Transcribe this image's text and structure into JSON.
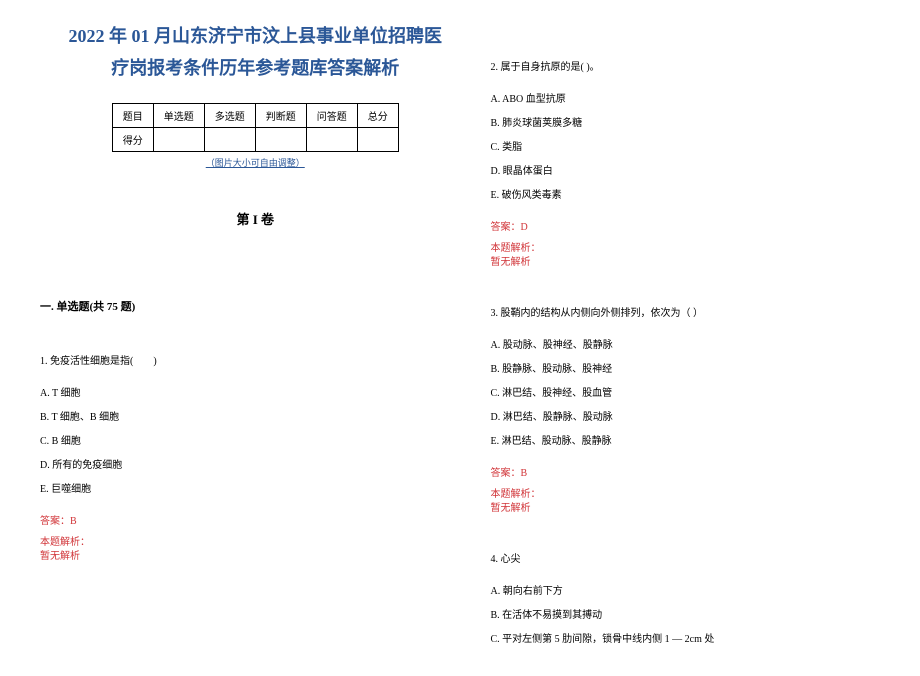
{
  "title_line1": "2022 年 01 月山东济宁市汶上县事业单位招聘医",
  "title_line2": "疗岗报考条件历年参考题库答案解析",
  "title_color": "#2b5797",
  "title_fontsize": 18,
  "score_table": {
    "headers": [
      "题目",
      "单选题",
      "多选题",
      "判断题",
      "问答题",
      "总分"
    ],
    "row_label": "得分"
  },
  "adjust_note": "（图片大小可自由调整）",
  "volume_title": "第 I 卷",
  "section_header": "一. 单选题(共 75 题)",
  "q1": {
    "text": "1. 免疫活性细胞是指(　　)",
    "options": {
      "A": "A. T 细胞",
      "B": "B. T 细胞、B 细胞",
      "C": "C. B 细胞",
      "D": "D. 所有的免疫细胞",
      "E": "E. 巨噬细胞"
    },
    "answer": "答案：B",
    "analysis_label": "本题解析：",
    "analysis": "暂无解析"
  },
  "q2": {
    "text": "2. 属于自身抗原的是( )。",
    "options": {
      "A": "A. ABO 血型抗原",
      "B": "B. 肺炎球菌荚膜多糖",
      "C": "C. 类脂",
      "D": "D. 眼晶体蛋白",
      "E": "E. 破伤风类毒素"
    },
    "answer": "答案：D",
    "analysis_label": "本题解析：",
    "analysis": "暂无解析"
  },
  "q3": {
    "text": "3. 股鞘内的结构从内侧向外侧排列，依次为（ ）",
    "options": {
      "A": "A. 股动脉、股神经、股静脉",
      "B": "B. 股静脉、股动脉、股神经",
      "C": "C. 淋巴结、股神经、股血管",
      "D": "D. 淋巴结、股静脉、股动脉",
      "E": "E. 淋巴结、股动脉、股静脉"
    },
    "answer": "答案：B",
    "analysis_label": "本题解析：",
    "analysis": "暂无解析"
  },
  "q4": {
    "text": "4. 心尖",
    "options": {
      "A": "A. 朝向右前下方",
      "B": "B. 在活体不易摸到其搏动",
      "C": "C. 平对左侧第 5 肋间隙，锁骨中线内侧 1 — 2cm 处"
    }
  },
  "answer_color": "#d13438",
  "text_color": "#000000"
}
